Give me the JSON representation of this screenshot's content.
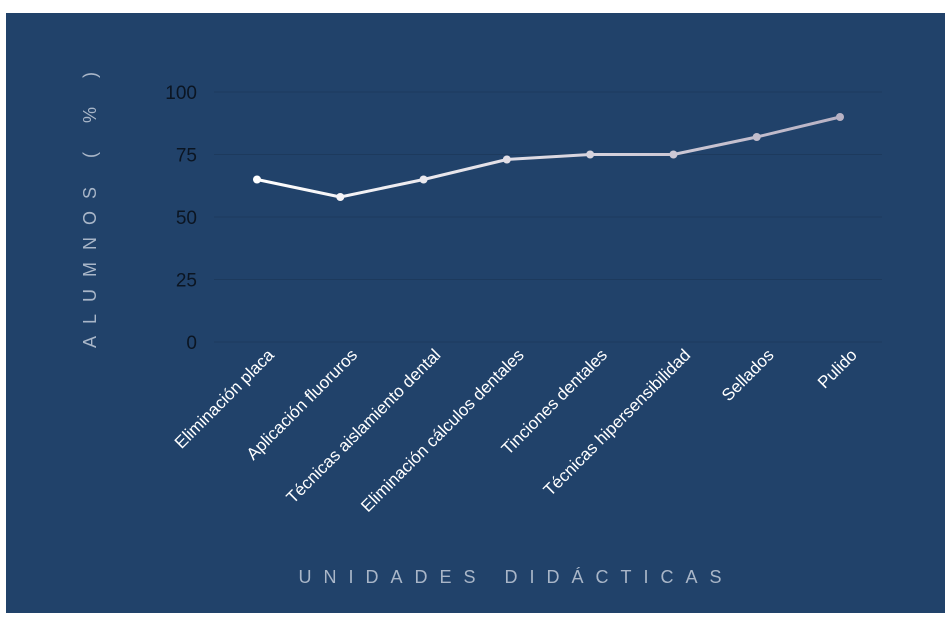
{
  "chart_data": {
    "type": "line",
    "xlabel": "UNIDADES DIDÁCTICAS",
    "ylabel": "ALUMNOS ( % )",
    "ylim": [
      0,
      100
    ],
    "yticks": [
      "0",
      "25",
      "50",
      "75",
      "100"
    ],
    "categories": [
      "Eliminación placa",
      "Aplicación fluoruros",
      "Técnicas aislamiento dental",
      "Eliminación cálculos dentales",
      "Tinciones dentales",
      "Técnicas hipersensibilidad",
      "Sellados",
      "Pulido"
    ],
    "series": [
      {
        "values": [
          65,
          58,
          65,
          73,
          75,
          75,
          82,
          90
        ]
      }
    ],
    "grid": true,
    "colors": {
      "background": "#21426a",
      "line_start": "#ffffff",
      "line_end": "#b8b2c4",
      "tick_y": "#0b1522",
      "tick_x": "#ffffff",
      "axis_title": "#a9b6c8"
    }
  }
}
